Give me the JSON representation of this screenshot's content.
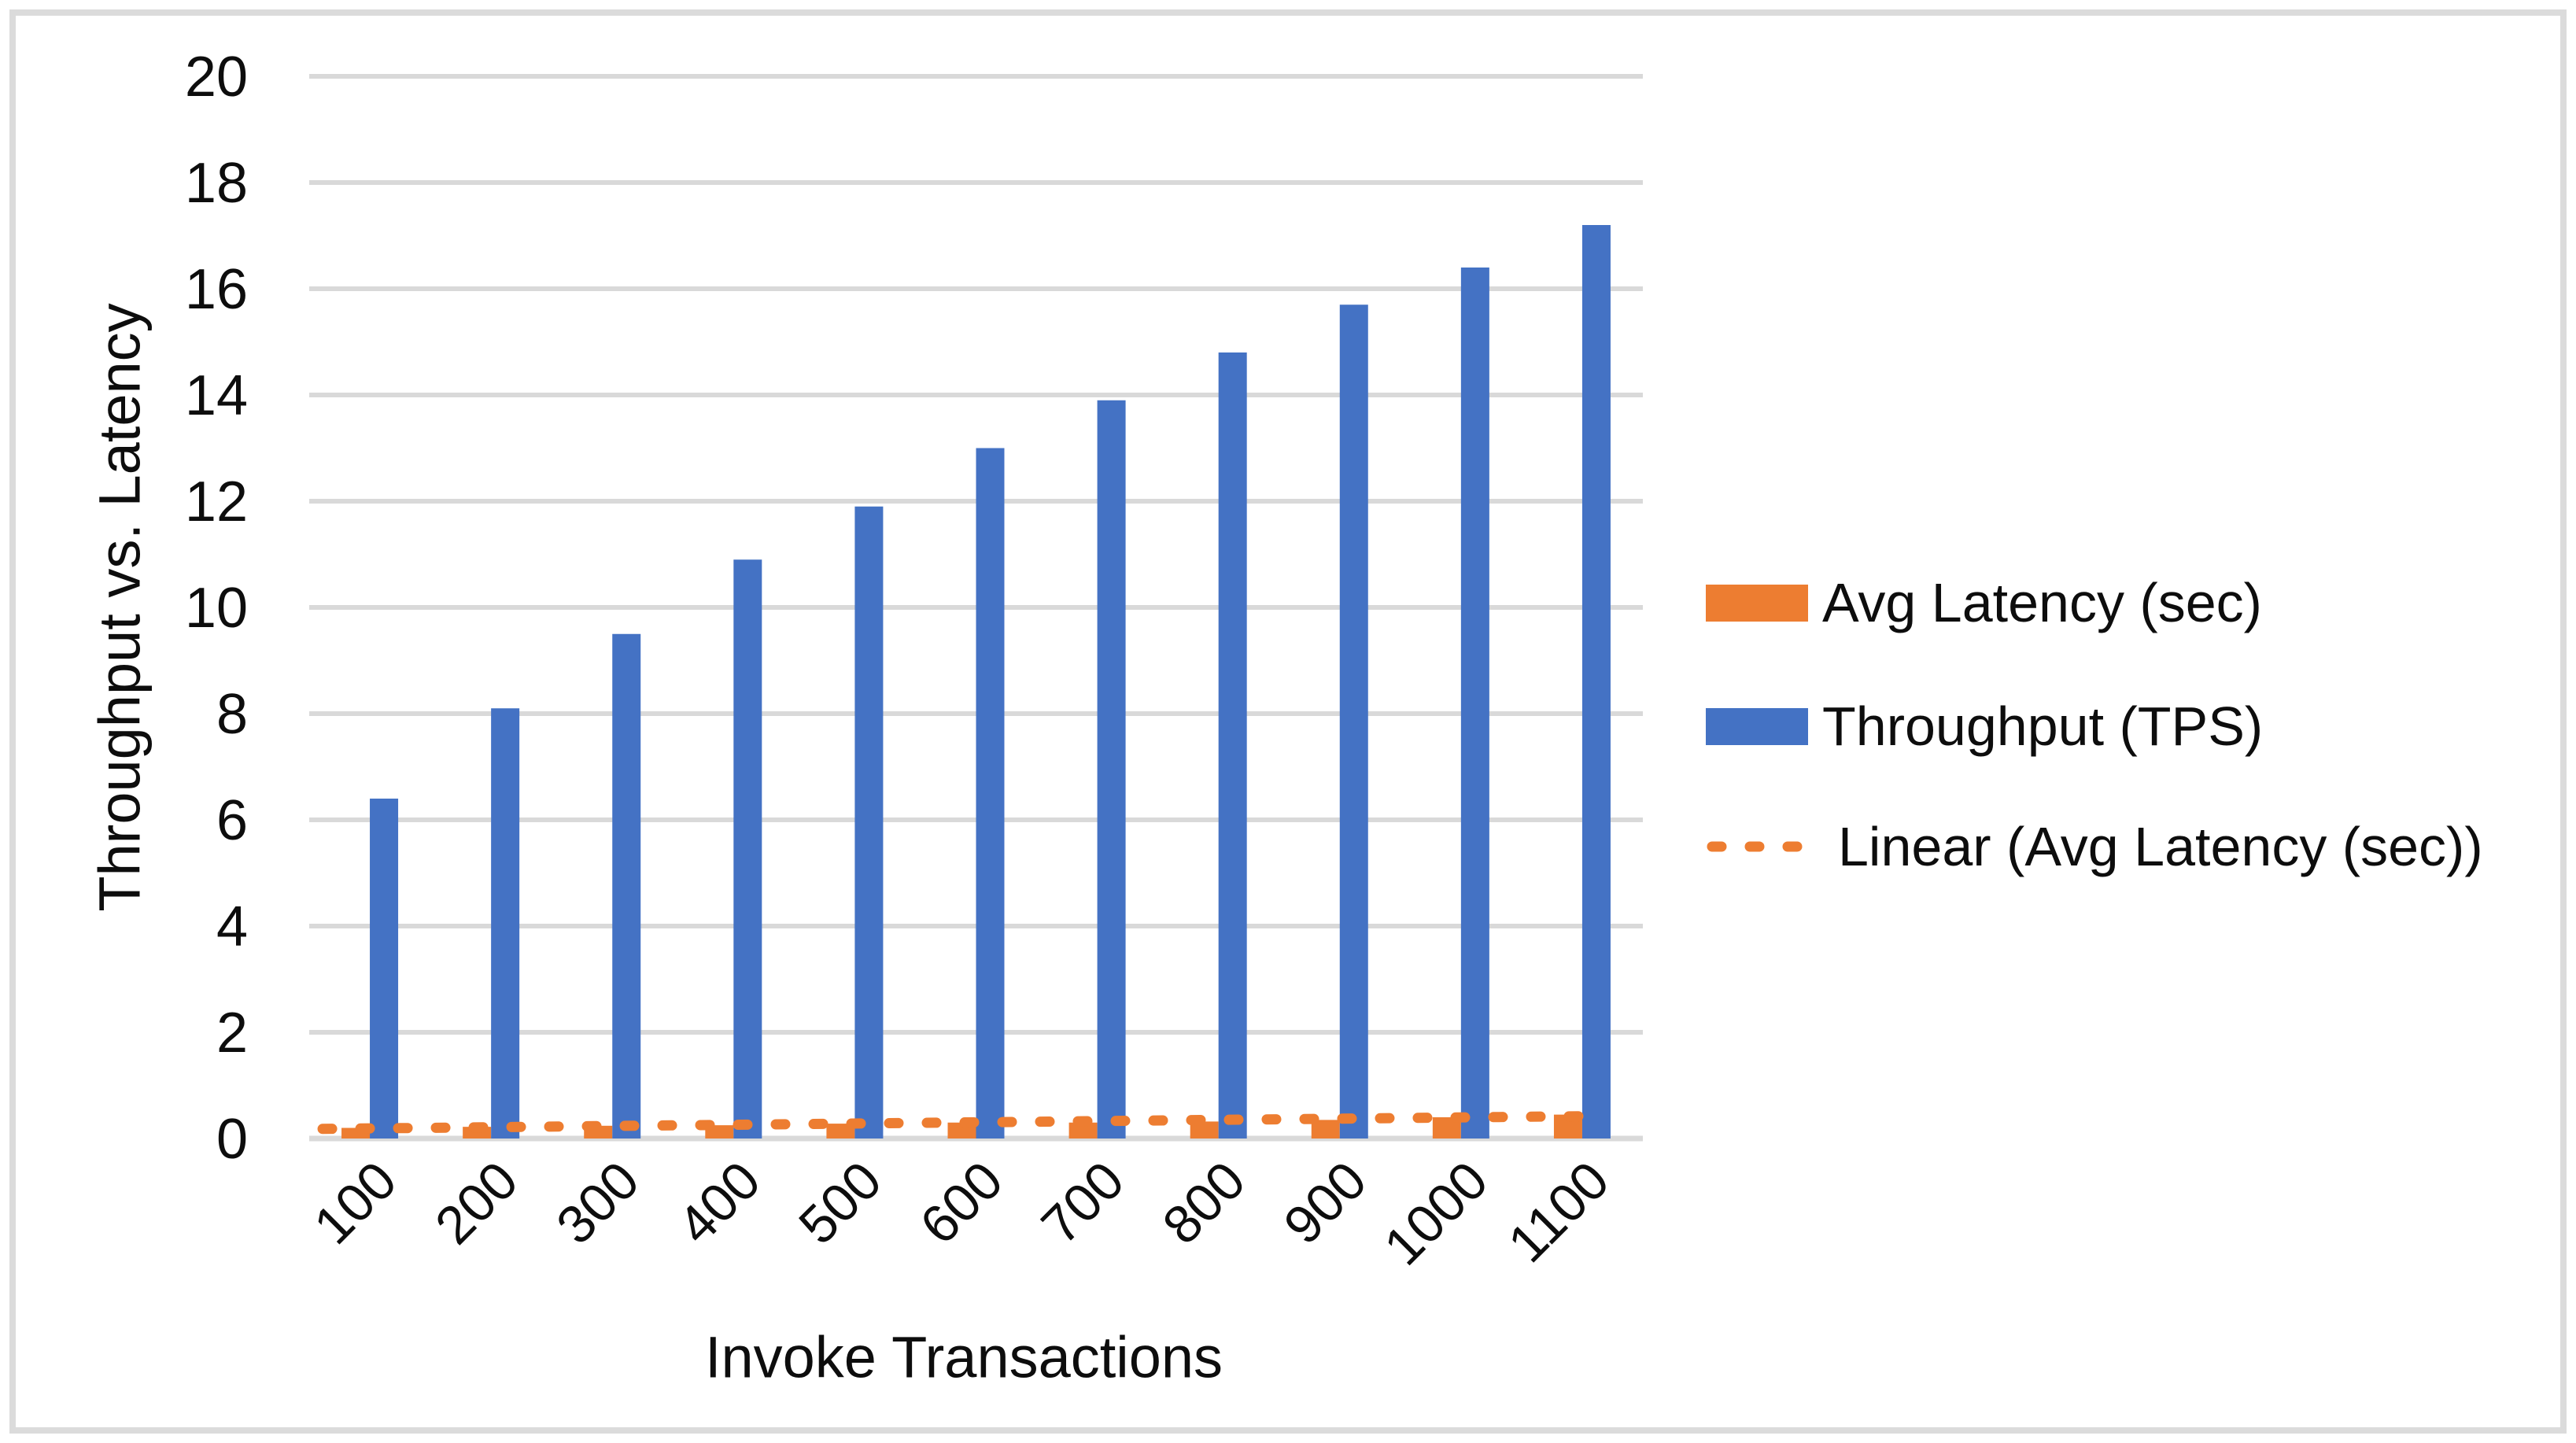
{
  "chart_data": {
    "type": "bar",
    "title": "",
    "xlabel": "Invoke Transactions",
    "ylabel": "Throughput vs. Latency",
    "categories": [
      100,
      200,
      300,
      400,
      500,
      600,
      700,
      800,
      900,
      1000,
      1100
    ],
    "series": [
      {
        "name": "Avg Latency (sec)",
        "type": "bar",
        "color": "#ED7D31",
        "values": [
          0.2,
          0.22,
          0.24,
          0.25,
          0.28,
          0.3,
          0.3,
          0.32,
          0.35,
          0.4,
          0.45
        ]
      },
      {
        "name": "Throughput (TPS)",
        "type": "bar",
        "color": "#4472C4",
        "values": [
          6.4,
          8.1,
          9.5,
          10.9,
          11.9,
          13.0,
          13.9,
          14.8,
          15.7,
          16.4,
          17.2
        ]
      },
      {
        "name": "Linear (Avg Latency (sec))",
        "type": "trendline",
        "color": "#ED7D31",
        "line_style": "dashed",
        "start_value": 0.19,
        "end_value": 0.42
      }
    ],
    "ylim": [
      0,
      20
    ],
    "y_tick_step": 2,
    "y_ticks": [
      0,
      2,
      4,
      6,
      8,
      10,
      12,
      14,
      16,
      18,
      20
    ],
    "grid": true,
    "grid_color": "#D9D9D9",
    "axis_line_color": "#D9D9D9",
    "text_color": "#0d0d0d",
    "legend_position": "right",
    "x_tick_rotation_deg": -45
  }
}
